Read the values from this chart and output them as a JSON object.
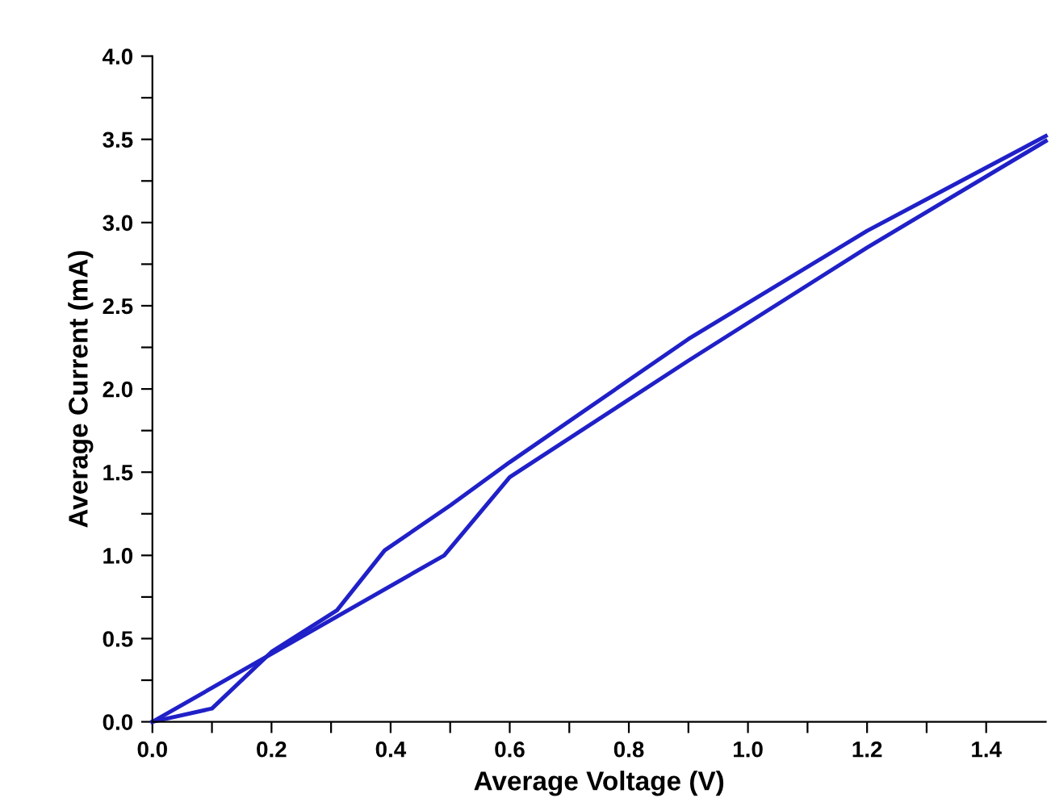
{
  "chart_data": {
    "type": "line",
    "xlabel": "Average Voltage (V)",
    "ylabel": "Average Current (mA)",
    "xlim": [
      0,
      1.5
    ],
    "ylim": [
      0,
      4.0
    ],
    "xticks": [
      {
        "value": 0,
        "label": "0.0"
      },
      {
        "value": 0.1,
        "label": null
      },
      {
        "value": 0.2,
        "label": "0.2"
      },
      {
        "value": 0.3,
        "label": null
      },
      {
        "value": 0.4,
        "label": "0.4"
      },
      {
        "value": 0.5,
        "label": null
      },
      {
        "value": 0.6,
        "label": "0.6"
      },
      {
        "value": 0.7,
        "label": null
      },
      {
        "value": 0.8,
        "label": "0.8"
      },
      {
        "value": 0.9,
        "label": null
      },
      {
        "value": 1.0,
        "label": "1.0"
      },
      {
        "value": 1.1,
        "label": null
      },
      {
        "value": 1.2,
        "label": "1.2"
      },
      {
        "value": 1.3,
        "label": null
      },
      {
        "value": 1.4,
        "label": "1.4"
      }
    ],
    "yticks": [
      {
        "value": 0,
        "label": "0.0"
      },
      {
        "value": 0.25,
        "label": null
      },
      {
        "value": 0.5,
        "label": "0.5"
      },
      {
        "value": 0.75,
        "label": null
      },
      {
        "value": 1.0,
        "label": "1.0"
      },
      {
        "value": 1.25,
        "label": null
      },
      {
        "value": 1.5,
        "label": "1.5"
      },
      {
        "value": 1.75,
        "label": null
      },
      {
        "value": 2.0,
        "label": "2.0"
      },
      {
        "value": 2.25,
        "label": null
      },
      {
        "value": 2.5,
        "label": "2.5"
      },
      {
        "value": 2.75,
        "label": null
      },
      {
        "value": 3.0,
        "label": "3.0"
      },
      {
        "value": 3.25,
        "label": null
      },
      {
        "value": 3.5,
        "label": "3.5"
      },
      {
        "value": 3.75,
        "label": null
      },
      {
        "value": 4.0,
        "label": "4.0"
      }
    ],
    "grid": false,
    "legend": false,
    "marker": "none",
    "line_style": "solid",
    "series": [
      {
        "color": "#2020c8",
        "x": [
          0,
          0.1,
          0.2,
          0.31,
          0.39,
          0.5,
          0.6,
          0.9,
          1.2,
          1.4,
          1.5
        ],
        "values": [
          0,
          0.08,
          0.42,
          0.67,
          1.03,
          1.3,
          1.56,
          2.3,
          2.95,
          3.33,
          3.52
        ]
      },
      {
        "color": "#2020c8",
        "x": [
          0,
          0.49,
          0.6,
          0.9,
          1.2,
          1.5
        ],
        "values": [
          0,
          1.0,
          1.47,
          2.17,
          2.85,
          3.49
        ]
      }
    ]
  }
}
